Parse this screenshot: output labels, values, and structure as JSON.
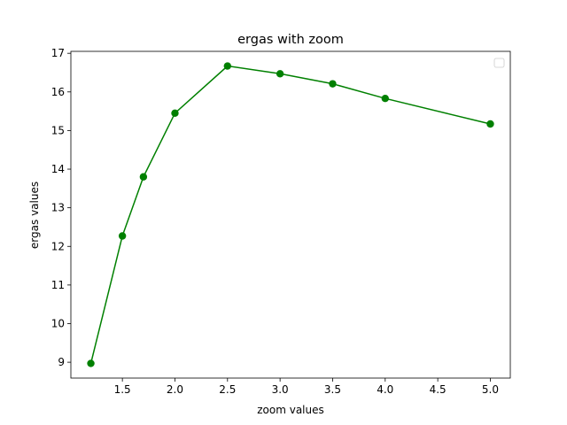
{
  "chart_data": {
    "type": "line",
    "title": "ergas with zoom",
    "xlabel": "zoom values",
    "ylabel": "ergas values",
    "x": [
      1.2,
      1.5,
      1.7,
      2.0,
      2.5,
      3.0,
      3.5,
      4.0,
      5.0
    ],
    "series": [
      {
        "values": [
          8.97,
          12.27,
          13.8,
          15.45,
          16.67,
          16.47,
          16.21,
          15.83,
          15.17
        ],
        "color": "#008000"
      }
    ],
    "xlim": [
      1.01,
      5.19
    ],
    "ylim": [
      8.59,
      17.05
    ],
    "xticks": [
      "1.5",
      "2.0",
      "2.5",
      "3.0",
      "3.5",
      "4.0",
      "4.5",
      "5.0"
    ],
    "yticks": [
      "9",
      "10",
      "11",
      "12",
      "13",
      "14",
      "15",
      "16",
      "17"
    ],
    "legend": {
      "location": "top-right",
      "entries": []
    },
    "grid": false
  }
}
